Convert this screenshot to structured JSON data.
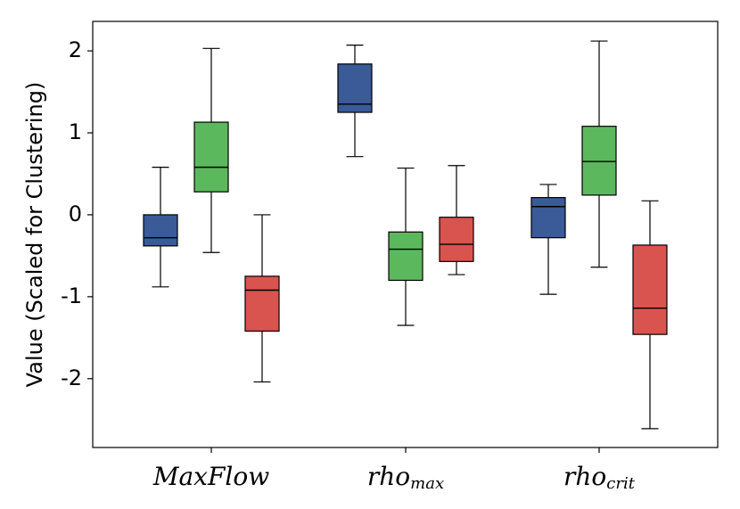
{
  "chart_data": {
    "type": "box",
    "ylabel": "Value (Scaled for Clustering)",
    "categories": [
      "MaxFlow",
      "rho",
      "rho"
    ],
    "category_subscripts": [
      null,
      "max",
      "crit"
    ],
    "ylim": [
      -2.84,
      2.36
    ],
    "yticks": [
      -2,
      -1,
      0,
      1,
      2
    ],
    "series": [
      {
        "color": "#3a5a98",
        "values": [
          {
            "low": -0.88,
            "q1": -0.38,
            "median": -0.28,
            "q3": 0.0,
            "high": 0.58
          },
          {
            "low": 0.71,
            "q1": 1.25,
            "median": 1.35,
            "q3": 1.84,
            "high": 2.07
          },
          {
            "low": -0.97,
            "q1": -0.28,
            "median": 0.1,
            "q3": 0.21,
            "high": 0.37
          }
        ]
      },
      {
        "color": "#5cb85c",
        "values": [
          {
            "low": -0.46,
            "q1": 0.28,
            "median": 0.58,
            "q3": 1.13,
            "high": 2.03
          },
          {
            "low": -1.35,
            "q1": -0.8,
            "median": -0.42,
            "q3": -0.21,
            "high": 0.57
          },
          {
            "low": -0.64,
            "q1": 0.24,
            "median": 0.65,
            "q3": 1.08,
            "high": 2.12
          }
        ]
      },
      {
        "color": "#d9534f",
        "values": [
          {
            "low": -2.04,
            "q1": -1.42,
            "median": -0.92,
            "q3": -0.75,
            "high": 0.0
          },
          {
            "low": -0.73,
            "q1": -0.57,
            "median": -0.36,
            "q3": -0.03,
            "high": 0.6
          },
          {
            "low": -2.61,
            "q1": -1.46,
            "median": -1.14,
            "q3": -0.37,
            "high": 0.17
          }
        ]
      }
    ]
  }
}
